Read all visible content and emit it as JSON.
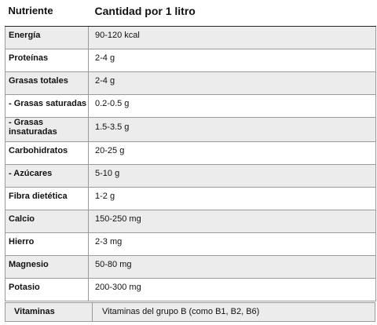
{
  "table": {
    "headers": {
      "nutrient": "Nutriente",
      "amount": "Cantidad por 1 litro"
    },
    "rows": [
      {
        "name": "Energía",
        "value": "90-120 kcal"
      },
      {
        "name": "Proteínas",
        "value": "2-4 g"
      },
      {
        "name": "Grasas totales",
        "value": "2-4 g"
      },
      {
        "name": "- Grasas saturadas",
        "value": "0.2-0.5 g"
      },
      {
        "name": "- Grasas insaturadas",
        "value": "1.5-3.5 g"
      },
      {
        "name": "Carbohidratos",
        "value": "20-25 g"
      },
      {
        "name": "- Azúcares",
        "value": "5-10 g"
      },
      {
        "name": "Fibra dietética",
        "value": "1-2 g"
      },
      {
        "name": "Calcio",
        "value": "150-250 mg"
      },
      {
        "name": "Hierro",
        "value": "2-3 mg"
      },
      {
        "name": "Magnesio",
        "value": "50-80 mg"
      },
      {
        "name": "Potasio",
        "value": "200-300 mg"
      }
    ],
    "last_row": {
      "name": "Vitaminas",
      "value": "Vitaminas del grupo B (como B1, B2, B6)"
    }
  }
}
